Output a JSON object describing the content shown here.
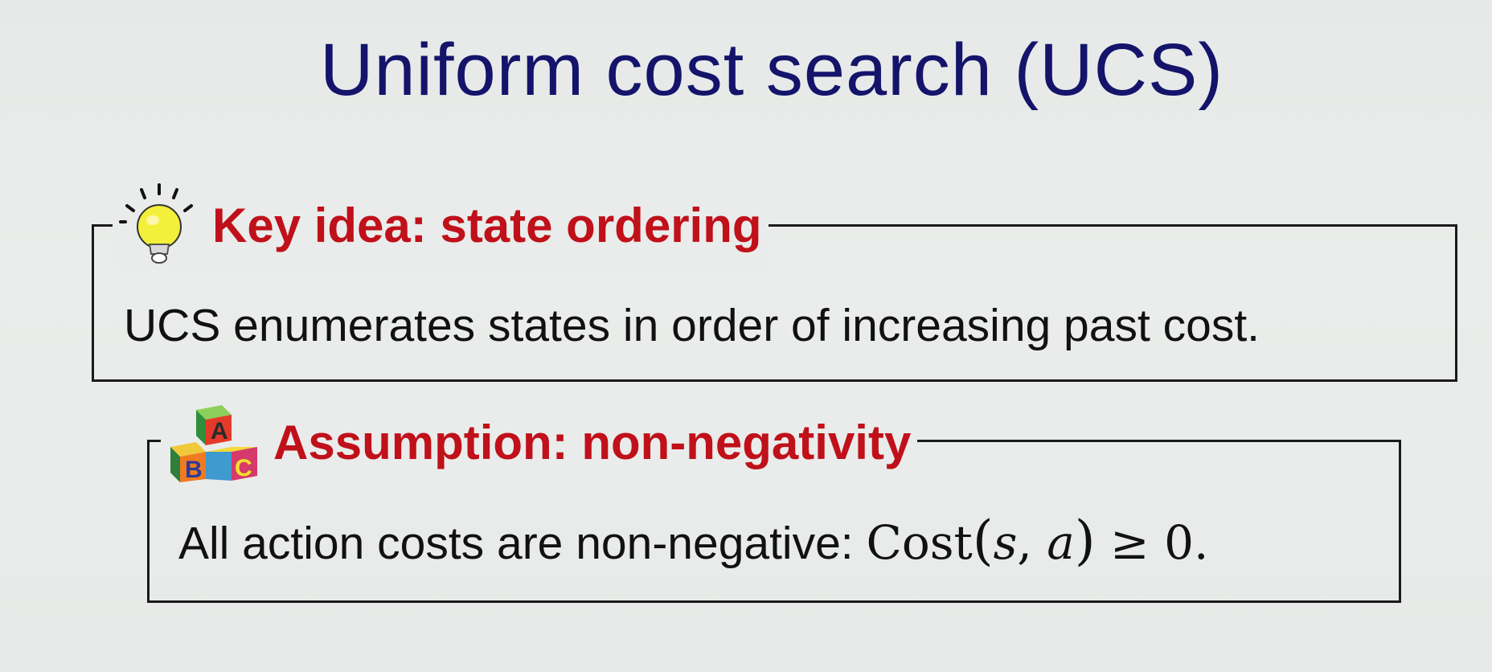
{
  "slide": {
    "title": "Uniform cost search (UCS)",
    "boxes": [
      {
        "icon": "lightbulb-icon",
        "heading": "Key idea: state ordering",
        "text": "UCS enumerates states in order of increasing past cost."
      },
      {
        "icon": "abc-blocks-icon",
        "heading": "Assumption: non-negativity",
        "text_prefix": "All action costs are non-negative: ",
        "math": {
          "func": "Cost",
          "open": "(",
          "arg1": "s",
          "comma": ", ",
          "arg2": "a",
          "close": ")",
          "rel": " ≥ ",
          "rhs": "0",
          "end": "."
        }
      }
    ]
  },
  "colors": {
    "title": "#14146b",
    "heading": "#c0101a",
    "body": "#111111",
    "background": "#e9ecea"
  }
}
